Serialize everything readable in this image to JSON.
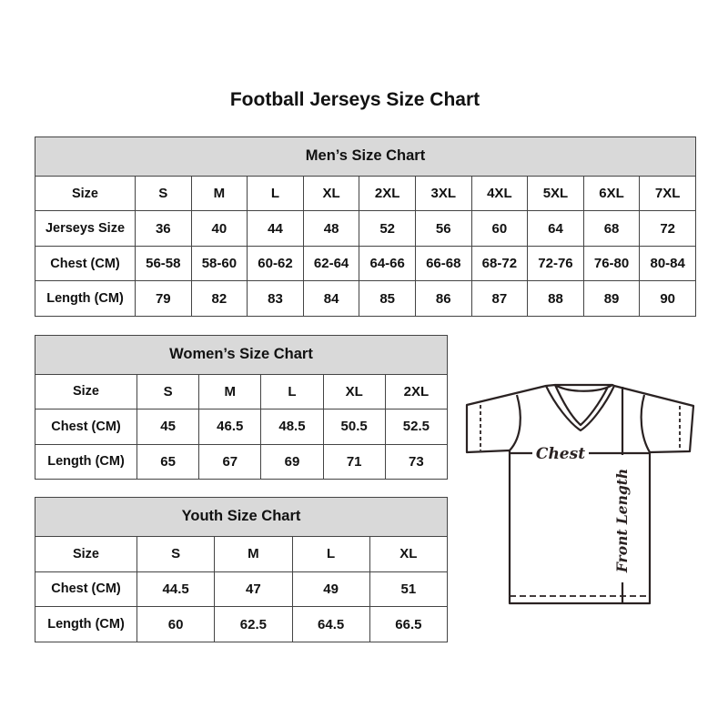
{
  "title": "Football Jerseys Size Chart",
  "mens": {
    "heading": "Men’s Size Chart",
    "rows": [
      [
        "Size",
        "S",
        "M",
        "L",
        "XL",
        "2XL",
        "3XL",
        "4XL",
        "5XL",
        "6XL",
        "7XL"
      ],
      [
        "Jerseys Size",
        "36",
        "40",
        "44",
        "48",
        "52",
        "56",
        "60",
        "64",
        "68",
        "72"
      ],
      [
        "Chest (CM)",
        "56-58",
        "58-60",
        "60-62",
        "62-64",
        "64-66",
        "66-68",
        "68-72",
        "72-76",
        "76-80",
        "80-84"
      ],
      [
        "Length (CM)",
        "79",
        "82",
        "83",
        "84",
        "85",
        "86",
        "87",
        "88",
        "89",
        "90"
      ]
    ]
  },
  "womens": {
    "heading": "Women’s Size Chart",
    "rows": [
      [
        "Size",
        "S",
        "M",
        "L",
        "XL",
        "2XL"
      ],
      [
        "Chest (CM)",
        "45",
        "46.5",
        "48.5",
        "50.5",
        "52.5"
      ],
      [
        "Length (CM)",
        "65",
        "67",
        "69",
        "71",
        "73"
      ]
    ]
  },
  "youth": {
    "heading": "Youth Size Chart",
    "rows": [
      [
        "Size",
        "S",
        "M",
        "L",
        "XL"
      ],
      [
        "Chest (CM)",
        "44.5",
        "47",
        "49",
        "51"
      ],
      [
        "Length (CM)",
        "60",
        "62.5",
        "64.5",
        "66.5"
      ]
    ]
  },
  "diagram": {
    "chest_label": "Chest",
    "length_label": "Front Length"
  }
}
